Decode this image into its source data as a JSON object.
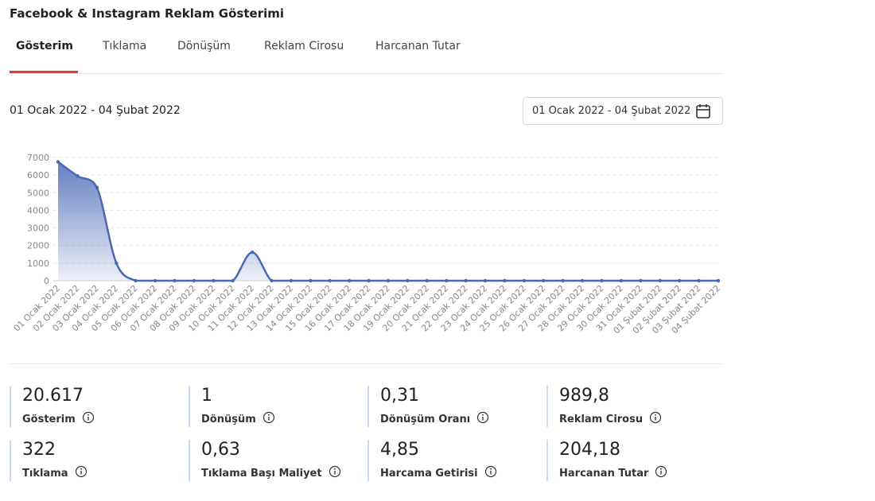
{
  "header": {
    "title": "Facebook & Instagram Reklam Gösterimi"
  },
  "tabs": [
    "Gösterim",
    "Tıklama",
    "Dönüşüm",
    "Reklam Cirosu",
    "Harcanan Tutar"
  ],
  "date_range": "01 Ocak 2022 - 04 Şubat 2022",
  "date_picker": "01 Ocak 2022 - 04 Şubat 2022",
  "chart_data": {
    "type": "area",
    "categories": [
      "01 Ocak 2022",
      "02 Ocak 2022",
      "03 Ocak 2022",
      "04 Ocak 2022",
      "05 Ocak 2022",
      "06 Ocak 2022",
      "07 Ocak 2022",
      "08 Ocak 2022",
      "09 Ocak 2022",
      "10 Ocak 2022",
      "11 Ocak 2022",
      "12 Ocak 2022",
      "13 Ocak 2022",
      "14 Ocak 2022",
      "15 Ocak 2022",
      "16 Ocak 2022",
      "17 Ocak 2022",
      "18 Ocak 2022",
      "19 Ocak 2022",
      "20 Ocak 2022",
      "21 Ocak 2022",
      "22 Ocak 2022",
      "23 Ocak 2022",
      "24 Ocak 2022",
      "25 Ocak 2022",
      "26 Ocak 2022",
      "27 Ocak 2022",
      "28 Ocak 2022",
      "29 Ocak 2022",
      "30 Ocak 2022",
      "31 Ocak 2022",
      "01 Şubat 2022",
      "02 Şubat 2022",
      "03 Şubat 2022",
      "04 Şubat 2022"
    ],
    "values": [
      6750,
      5950,
      5300,
      1000,
      0,
      0,
      0,
      0,
      0,
      0,
      1617,
      0,
      0,
      0,
      0,
      0,
      0,
      0,
      0,
      0,
      0,
      0,
      0,
      0,
      0,
      0,
      0,
      0,
      0,
      0,
      0,
      0,
      0,
      0,
      0
    ],
    "color": "#4a68b5",
    "ylim": [
      0,
      7000
    ],
    "yticks": [
      0,
      1000,
      2000,
      3000,
      4000,
      5000,
      6000,
      7000
    ],
    "grid": true
  },
  "stats": [
    {
      "value": "20.617",
      "label": "Gösterim"
    },
    {
      "value": "1",
      "label": "Dönüşüm"
    },
    {
      "value": "0,31",
      "label": "Dönüşüm Oranı"
    },
    {
      "value": "989,8",
      "label": "Reklam Cirosu"
    },
    {
      "value": "322",
      "label": "Tıklama"
    },
    {
      "value": "0,63",
      "label": "Tıklama Başı Maliyet"
    },
    {
      "value": "4,85",
      "label": "Harcama Getirisi"
    },
    {
      "value": "204,18",
      "label": "Harcanan Tutar"
    }
  ]
}
